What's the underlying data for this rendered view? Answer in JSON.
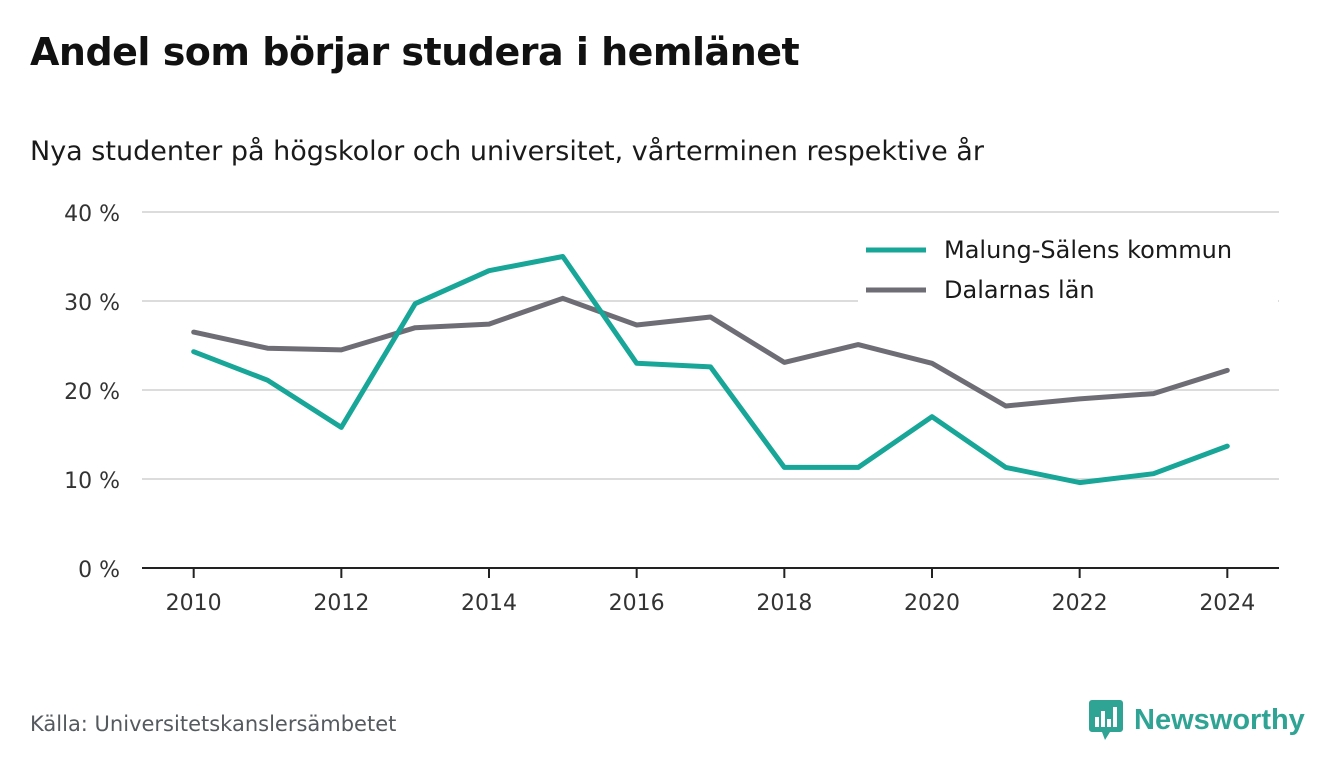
{
  "title": "Andel som börjar studera i hemlänet",
  "subtitle": "Nya studenter på högskolor och universitet, vårterminen respektive år",
  "source": "Källa: Universitetskanslersämbetet",
  "brand": {
    "name": "Newsworthy",
    "logo_icon": "bar-chart-speech-bubble-icon",
    "color": "#2fa394"
  },
  "chart_data": {
    "type": "line",
    "x": [
      2010,
      2011,
      2012,
      2013,
      2014,
      2015,
      2016,
      2017,
      2018,
      2019,
      2020,
      2021,
      2022,
      2023,
      2024
    ],
    "x_ticks": [
      2010,
      2012,
      2014,
      2016,
      2018,
      2020,
      2022,
      2024
    ],
    "x_tick_labels": [
      "2010",
      "2012",
      "2014",
      "2016",
      "2018",
      "2020",
      "2022",
      "2024"
    ],
    "y_ticks": [
      0,
      10,
      20,
      30,
      40
    ],
    "y_tick_labels": [
      "0 %",
      "10 %",
      "20 %",
      "30 %",
      "40 %"
    ],
    "ylim": [
      0,
      40
    ],
    "xlim": [
      2009.3,
      2024.7
    ],
    "grid": true,
    "legend_position": "top-right",
    "series": [
      {
        "name": "Malung-Sälens kommun",
        "color": "#17a697",
        "values": [
          24.3,
          21.1,
          15.8,
          29.7,
          33.4,
          35.0,
          23.0,
          22.6,
          11.3,
          11.3,
          17.0,
          11.3,
          9.6,
          10.6,
          13.7
        ]
      },
      {
        "name": "Dalarnas län",
        "color": "#6e6d75",
        "values": [
          26.5,
          24.7,
          24.5,
          27.0,
          27.4,
          30.3,
          27.3,
          28.2,
          23.1,
          25.1,
          23.0,
          18.2,
          19.0,
          19.6,
          22.2
        ]
      }
    ]
  }
}
